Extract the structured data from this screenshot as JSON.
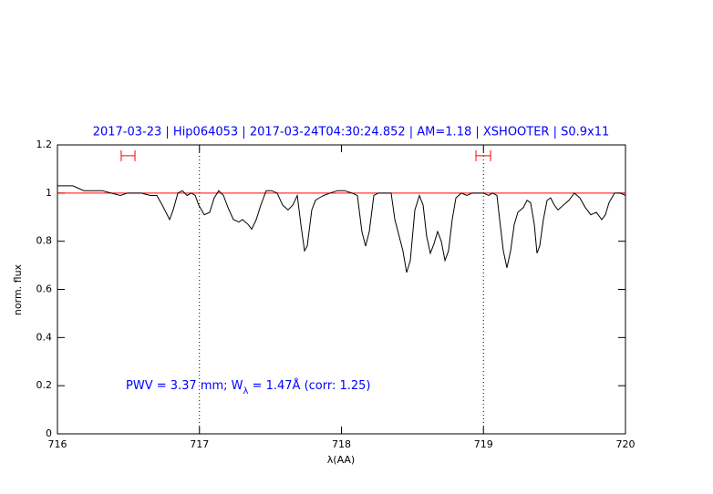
{
  "chart_data": {
    "type": "line",
    "title": "2017-03-23 | Hip064053 | 2017-03-24T04:30:24.852 | AM=1.18 | XSHOOTER | S0.9x11",
    "xlabel": "λ(AA)",
    "ylabel": "norm. flux",
    "annotation": [
      "PWV = 3.37 mm; W",
      "λ",
      " = 1.47Å (corr: 1.25)"
    ],
    "annotation_color": "#0000ff",
    "xlim": [
      716,
      720
    ],
    "xticks": [
      716,
      717,
      718,
      719,
      720
    ],
    "ylim": [
      0,
      1.2
    ],
    "yticks": [
      0,
      0.2,
      0.4,
      0.6,
      0.8,
      1,
      1.2
    ],
    "hline": 1,
    "hline_color": "#ff0000",
    "vlines": [
      717,
      719
    ],
    "markers": [
      {
        "x": [
          716.449,
          716.546
        ],
        "y": 1.155
      },
      {
        "x": [
          718.947,
          719.05
        ],
        "y": 1.155
      }
    ],
    "marker_color": "#ff0000",
    "x": [
      716.0,
      716.109,
      716.186,
      716.25,
      716.315,
      716.379,
      716.443,
      716.494,
      716.591,
      716.655,
      716.7,
      716.738,
      716.79,
      716.815,
      716.848,
      716.88,
      716.912,
      716.944,
      716.97,
      716.995,
      717.034,
      717.072,
      717.104,
      717.136,
      717.169,
      717.201,
      717.239,
      717.278,
      717.303,
      717.342,
      717.368,
      717.4,
      717.432,
      717.47,
      717.509,
      717.547,
      717.586,
      717.624,
      717.657,
      717.689,
      717.714,
      717.74,
      717.759,
      717.791,
      717.817,
      717.843,
      717.875,
      717.92,
      717.971,
      718.022,
      718.074,
      718.112,
      718.144,
      718.17,
      718.196,
      718.228,
      718.26,
      718.292,
      718.324,
      718.35,
      718.376,
      718.433,
      718.459,
      718.485,
      718.517,
      718.549,
      718.575,
      718.6,
      718.626,
      718.652,
      718.677,
      718.703,
      718.729,
      718.754,
      718.78,
      718.806,
      718.844,
      718.883,
      718.921,
      718.96,
      718.998,
      719.037,
      719.063,
      719.095,
      719.114,
      719.14,
      719.165,
      719.191,
      719.217,
      719.242,
      719.281,
      719.307,
      719.332,
      719.358,
      719.377,
      719.396,
      719.422,
      719.448,
      719.473,
      719.499,
      719.525,
      719.563,
      719.602,
      719.64,
      719.679,
      719.717,
      719.756,
      719.795,
      719.833,
      719.859,
      719.884,
      719.923,
      719.961,
      720.0
    ],
    "series": [
      {
        "color": "#000000",
        "values": [
          1.03,
          1.03,
          1.01,
          1.01,
          1.01,
          1.0,
          0.99,
          1.0,
          1.0,
          0.99,
          0.99,
          0.95,
          0.89,
          0.93,
          1.0,
          1.01,
          0.99,
          1.0,
          0.99,
          0.95,
          0.91,
          0.92,
          0.98,
          1.01,
          0.99,
          0.94,
          0.89,
          0.88,
          0.89,
          0.87,
          0.85,
          0.89,
          0.95,
          1.01,
          1.01,
          1.0,
          0.95,
          0.93,
          0.95,
          0.99,
          0.87,
          0.76,
          0.78,
          0.93,
          0.97,
          0.98,
          0.99,
          1.0,
          1.01,
          1.01,
          1.0,
          0.99,
          0.84,
          0.78,
          0.84,
          0.99,
          1.0,
          1.0,
          1.0,
          1.0,
          0.89,
          0.76,
          0.67,
          0.72,
          0.93,
          0.99,
          0.95,
          0.82,
          0.75,
          0.79,
          0.84,
          0.8,
          0.72,
          0.76,
          0.89,
          0.98,
          1.0,
          0.99,
          1.0,
          1.0,
          1.0,
          0.99,
          1.0,
          0.99,
          0.89,
          0.76,
          0.69,
          0.76,
          0.87,
          0.92,
          0.94,
          0.97,
          0.96,
          0.87,
          0.75,
          0.78,
          0.89,
          0.97,
          0.98,
          0.95,
          0.93,
          0.95,
          0.97,
          1.0,
          0.98,
          0.94,
          0.91,
          0.92,
          0.89,
          0.91,
          0.96,
          1.0,
          1.0,
          0.99
        ]
      }
    ]
  }
}
